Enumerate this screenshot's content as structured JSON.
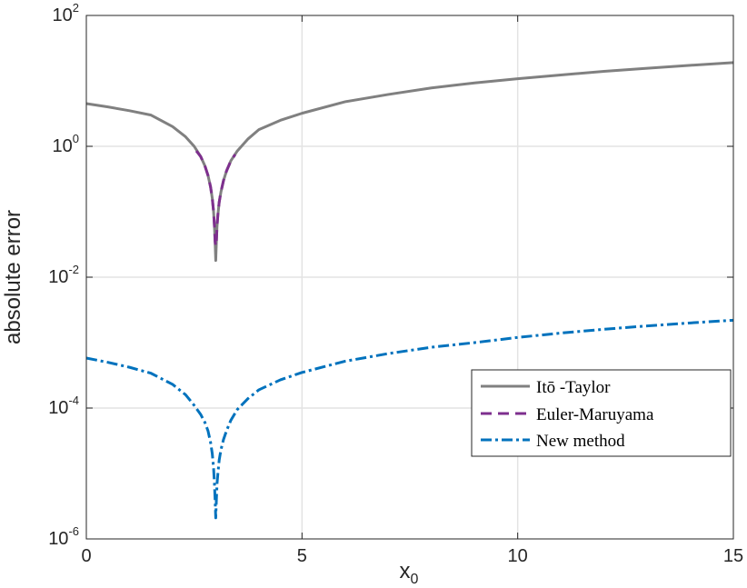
{
  "chart_data": {
    "type": "line",
    "xlabel": "x",
    "xlabel_subscript": "0",
    "ylabel": "absolute error",
    "xscale": "linear",
    "yscale": "log",
    "xlim": [
      0,
      15
    ],
    "ylim": [
      1e-06,
      100
    ],
    "xticks": [
      0,
      5,
      10,
      15
    ],
    "xtick_labels": [
      "0",
      "5",
      "10",
      "15"
    ],
    "yticks": [
      1e-06,
      0.0001,
      0.01,
      1,
      100
    ],
    "ytick_labels": [
      {
        "base": "10",
        "exp": "-6"
      },
      {
        "base": "10",
        "exp": "-4"
      },
      {
        "base": "10",
        "exp": "-2"
      },
      {
        "base": "10",
        "exp": "0"
      },
      {
        "base": "10",
        "exp": "2"
      }
    ],
    "grid": true,
    "legend_position": "lower-right",
    "legend": [
      "Itō -Taylor",
      "Euler-Maruyama",
      "New method"
    ],
    "series": [
      {
        "name": "Itō -Taylor",
        "color": "#808080",
        "dash": "solid",
        "x": [
          0,
          0.5,
          1,
          1.5,
          2,
          2.3,
          2.5,
          2.65,
          2.75,
          2.82,
          2.88,
          2.92,
          2.95,
          2.97,
          2.985,
          3.0,
          3.015,
          3.03,
          3.05,
          3.08,
          3.12,
          3.18,
          3.25,
          3.35,
          3.5,
          3.75,
          4,
          4.5,
          5,
          6,
          7,
          8,
          9,
          10,
          11,
          12,
          13,
          14,
          15
        ],
        "y": [
          4.5,
          4.0,
          3.5,
          3.0,
          2.0,
          1.4,
          1.0,
          0.7,
          0.5,
          0.36,
          0.24,
          0.16,
          0.1,
          0.06,
          0.035,
          0.018,
          0.035,
          0.06,
          0.09,
          0.14,
          0.2,
          0.3,
          0.42,
          0.6,
          0.85,
          1.3,
          1.8,
          2.5,
          3.2,
          4.8,
          6.2,
          7.8,
          9.3,
          10.8,
          12.3,
          14.0,
          15.6,
          17.3,
          19.0
        ]
      },
      {
        "name": "Euler-Maruyama",
        "color": "#7E2F8E",
        "dash": "dashed",
        "x": [
          2.55,
          2.65,
          2.75,
          2.82,
          2.88,
          2.92,
          2.95,
          2.97,
          2.985,
          3.0,
          3.015,
          3.03,
          3.05,
          3.08,
          3.12,
          3.18,
          3.25,
          3.35,
          3.45
        ],
        "y": [
          0.85,
          0.7,
          0.5,
          0.36,
          0.24,
          0.16,
          0.1,
          0.06,
          0.035,
          0.03,
          0.035,
          0.06,
          0.09,
          0.14,
          0.2,
          0.3,
          0.42,
          0.6,
          0.75
        ]
      },
      {
        "name": "New method",
        "color": "#0072BD",
        "dash": "dashdot",
        "x": [
          0,
          0.5,
          1,
          1.5,
          2,
          2.3,
          2.5,
          2.65,
          2.75,
          2.82,
          2.88,
          2.92,
          2.95,
          2.97,
          2.985,
          3.0,
          3.015,
          3.03,
          3.05,
          3.08,
          3.12,
          3.18,
          3.25,
          3.35,
          3.5,
          3.75,
          4,
          4.5,
          5,
          6,
          7,
          8,
          9,
          10,
          11,
          12,
          13,
          14,
          15
        ],
        "y": [
          0.00058,
          0.0005,
          0.00042,
          0.00034,
          0.00023,
          0.00016,
          0.00011,
          8e-05,
          6e-05,
          4.5e-05,
          3e-05,
          2e-05,
          1.2e-05,
          7e-06,
          4e-06,
          2.1e-06,
          4e-06,
          7e-06,
          1e-05,
          1.6e-05,
          2.3e-05,
          3.3e-05,
          4.5e-05,
          6.5e-05,
          9.5e-05,
          0.00014,
          0.00019,
          0.00027,
          0.00035,
          0.00052,
          0.00068,
          0.00085,
          0.001,
          0.0012,
          0.0014,
          0.0016,
          0.0018,
          0.002,
          0.0022
        ]
      }
    ]
  }
}
